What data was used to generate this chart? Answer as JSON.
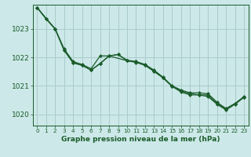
{
  "background_color": "#cce8e8",
  "plot_bg_color": "#cce8e8",
  "grid_color": "#aacccc",
  "line_color": "#1a5c2a",
  "marker_color": "#1a5c2a",
  "xlabel": "Graphe pression niveau de la mer (hPa)",
  "ylim": [
    1019.6,
    1023.85
  ],
  "xlim": [
    -0.5,
    23.5
  ],
  "yticks": [
    1020,
    1021,
    1022,
    1023
  ],
  "xticks": [
    0,
    1,
    2,
    3,
    4,
    5,
    6,
    7,
    8,
    9,
    10,
    11,
    12,
    13,
    14,
    15,
    16,
    17,
    18,
    19,
    20,
    21,
    22,
    23
  ],
  "series1_x": [
    0,
    1,
    2,
    3,
    4,
    5,
    6,
    7,
    8,
    9,
    10,
    11,
    12,
    13,
    14,
    15,
    16,
    17,
    18,
    19,
    20,
    21,
    22,
    23
  ],
  "series1_y": [
    1023.75,
    1023.35,
    1023.0,
    1022.3,
    1021.85,
    1021.75,
    1021.6,
    1022.05,
    1022.05,
    1022.1,
    1021.9,
    1021.85,
    1021.75,
    1021.55,
    1021.3,
    1021.0,
    1020.85,
    1020.75,
    1020.75,
    1020.72,
    1020.42,
    1020.2,
    1020.38,
    1020.62
  ],
  "series2_x": [
    0,
    1,
    2,
    3,
    4,
    5,
    6,
    7,
    8,
    9,
    10,
    11,
    12,
    13,
    14,
    15,
    16,
    17,
    18,
    19,
    20,
    21,
    22,
    23
  ],
  "series2_y": [
    1023.75,
    1023.35,
    1023.0,
    1022.25,
    1021.8,
    1021.72,
    1021.55,
    1021.78,
    1022.05,
    1022.1,
    1021.88,
    1021.85,
    1021.72,
    1021.52,
    1021.28,
    1020.98,
    1020.82,
    1020.72,
    1020.68,
    1020.68,
    1020.38,
    1020.18,
    1020.36,
    1020.6
  ],
  "series3_x": [
    0,
    2,
    3,
    4,
    5,
    6,
    7,
    8,
    10,
    11,
    12,
    13,
    14,
    15,
    16,
    17,
    18,
    19,
    20,
    21,
    22,
    23
  ],
  "series3_y": [
    1023.75,
    1023.0,
    1022.25,
    1021.82,
    1021.72,
    1021.55,
    1021.78,
    1022.05,
    1021.88,
    1021.82,
    1021.72,
    1021.5,
    1021.28,
    1020.98,
    1020.78,
    1020.68,
    1020.68,
    1020.62,
    1020.35,
    1020.15,
    1020.35,
    1020.6
  ]
}
